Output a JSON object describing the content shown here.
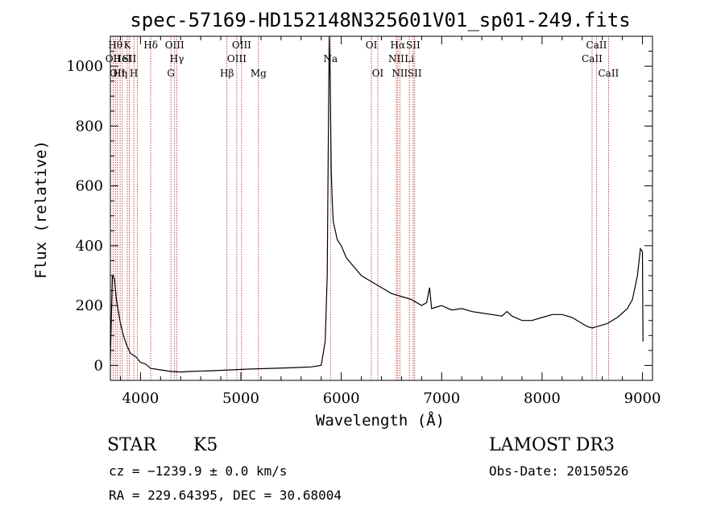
{
  "chart_data": {
    "type": "line",
    "title": "spec-57169-HD152148N325601V01_sp01-249.fits",
    "xlabel": "Wavelength (Å)",
    "ylabel": "Flux (relative)",
    "xlim": [
      3700,
      9100
    ],
    "ylim": [
      -50,
      1100
    ],
    "xticks": [
      4000,
      5000,
      6000,
      7000,
      8000,
      9000
    ],
    "yticks": [
      0,
      200,
      400,
      600,
      800,
      1000
    ],
    "series": [
      {
        "name": "spectrum",
        "x": [
          3700,
          3720,
          3740,
          3760,
          3780,
          3800,
          3830,
          3860,
          3900,
          3950,
          4000,
          4050,
          4100,
          4200,
          4300,
          4400,
          4500,
          4700,
          4900,
          5100,
          5300,
          5500,
          5700,
          5800,
          5840,
          5860,
          5870,
          5880,
          5890,
          5900,
          5910,
          5920,
          5940,
          5960,
          6000,
          6050,
          6100,
          6150,
          6200,
          6300,
          6400,
          6500,
          6600,
          6700,
          6800,
          6850,
          6880,
          6900,
          6950,
          7000,
          7100,
          7200,
          7300,
          7400,
          7500,
          7600,
          7650,
          7700,
          7800,
          7900,
          8000,
          8100,
          8200,
          8300,
          8400,
          8450,
          8500,
          8550,
          8600,
          8650,
          8700,
          8750,
          8800,
          8850,
          8900,
          8950,
          8980,
          9000,
          9005
        ],
        "values": [
          20,
          300,
          290,
          220,
          180,
          140,
          100,
          70,
          40,
          30,
          10,
          5,
          -10,
          -15,
          -20,
          -22,
          -20,
          -18,
          -15,
          -12,
          -10,
          -8,
          -5,
          0,
          80,
          300,
          700,
          1100,
          950,
          650,
          550,
          480,
          450,
          420,
          400,
          360,
          340,
          320,
          300,
          280,
          260,
          240,
          230,
          220,
          200,
          210,
          260,
          190,
          195,
          200,
          185,
          190,
          180,
          175,
          170,
          165,
          180,
          165,
          150,
          150,
          160,
          170,
          170,
          160,
          140,
          130,
          125,
          130,
          135,
          140,
          150,
          160,
          175,
          190,
          220,
          300,
          390,
          380,
          80
        ]
      }
    ],
    "line_marks": [
      {
        "wave": 3727,
        "name": "OII",
        "row": 2
      },
      {
        "wave": 3750,
        "name": "Hθ",
        "row": 1
      },
      {
        "wave": 3771,
        "name": "OII",
        "row": 3
      },
      {
        "wave": 3797,
        "name": "Hη",
        "row": 3
      },
      {
        "wave": 3819,
        "name": "HeI",
        "row": 2
      },
      {
        "wave": 3868,
        "name": "K",
        "row": 1
      },
      {
        "wave": 3889,
        "name": "SII",
        "row": 2
      },
      {
        "wave": 3934,
        "name": "H",
        "row": 3
      },
      {
        "wave": 3970,
        "name": "",
        "row": 1
      },
      {
        "wave": 4102,
        "name": "Hδ",
        "row": 1
      },
      {
        "wave": 4303,
        "name": "G",
        "row": 3
      },
      {
        "wave": 4340,
        "name": "OIII",
        "row": 1
      },
      {
        "wave": 4363,
        "name": "Hγ",
        "row": 2
      },
      {
        "wave": 4861,
        "name": "Hβ",
        "row": 3
      },
      {
        "wave": 4959,
        "name": "OIII",
        "row": 2
      },
      {
        "wave": 5007,
        "name": "OIII",
        "row": 1
      },
      {
        "wave": 5175,
        "name": "Mg",
        "row": 3
      },
      {
        "wave": 5893,
        "name": "Na",
        "row": 2
      },
      {
        "wave": 6300,
        "name": "OI",
        "row": 1
      },
      {
        "wave": 6364,
        "name": "OI",
        "row": 3
      },
      {
        "wave": 6548,
        "name": "NII",
        "row": 2
      },
      {
        "wave": 6563,
        "name": "Hα",
        "row": 1
      },
      {
        "wave": 6583,
        "name": "NII",
        "row": 3
      },
      {
        "wave": 6678,
        "name": "Li",
        "row": 2
      },
      {
        "wave": 6716,
        "name": "SII",
        "row": 1
      },
      {
        "wave": 6731,
        "name": "SII",
        "row": 3
      },
      {
        "wave": 8498,
        "name": "CaII",
        "row": 2
      },
      {
        "wave": 8542,
        "name": "CaII",
        "row": 1
      },
      {
        "wave": 8662,
        "name": "CaII",
        "row": 3
      }
    ]
  },
  "info": {
    "object_class": "STAR",
    "subclass": "K5",
    "survey": "LAMOST DR3",
    "cz": "cz = −1239.9 ± 0.0 km/s",
    "obs_date": "Obs-Date: 20150526",
    "radec": "RA = 229.64395, DEC =  30.68004"
  }
}
